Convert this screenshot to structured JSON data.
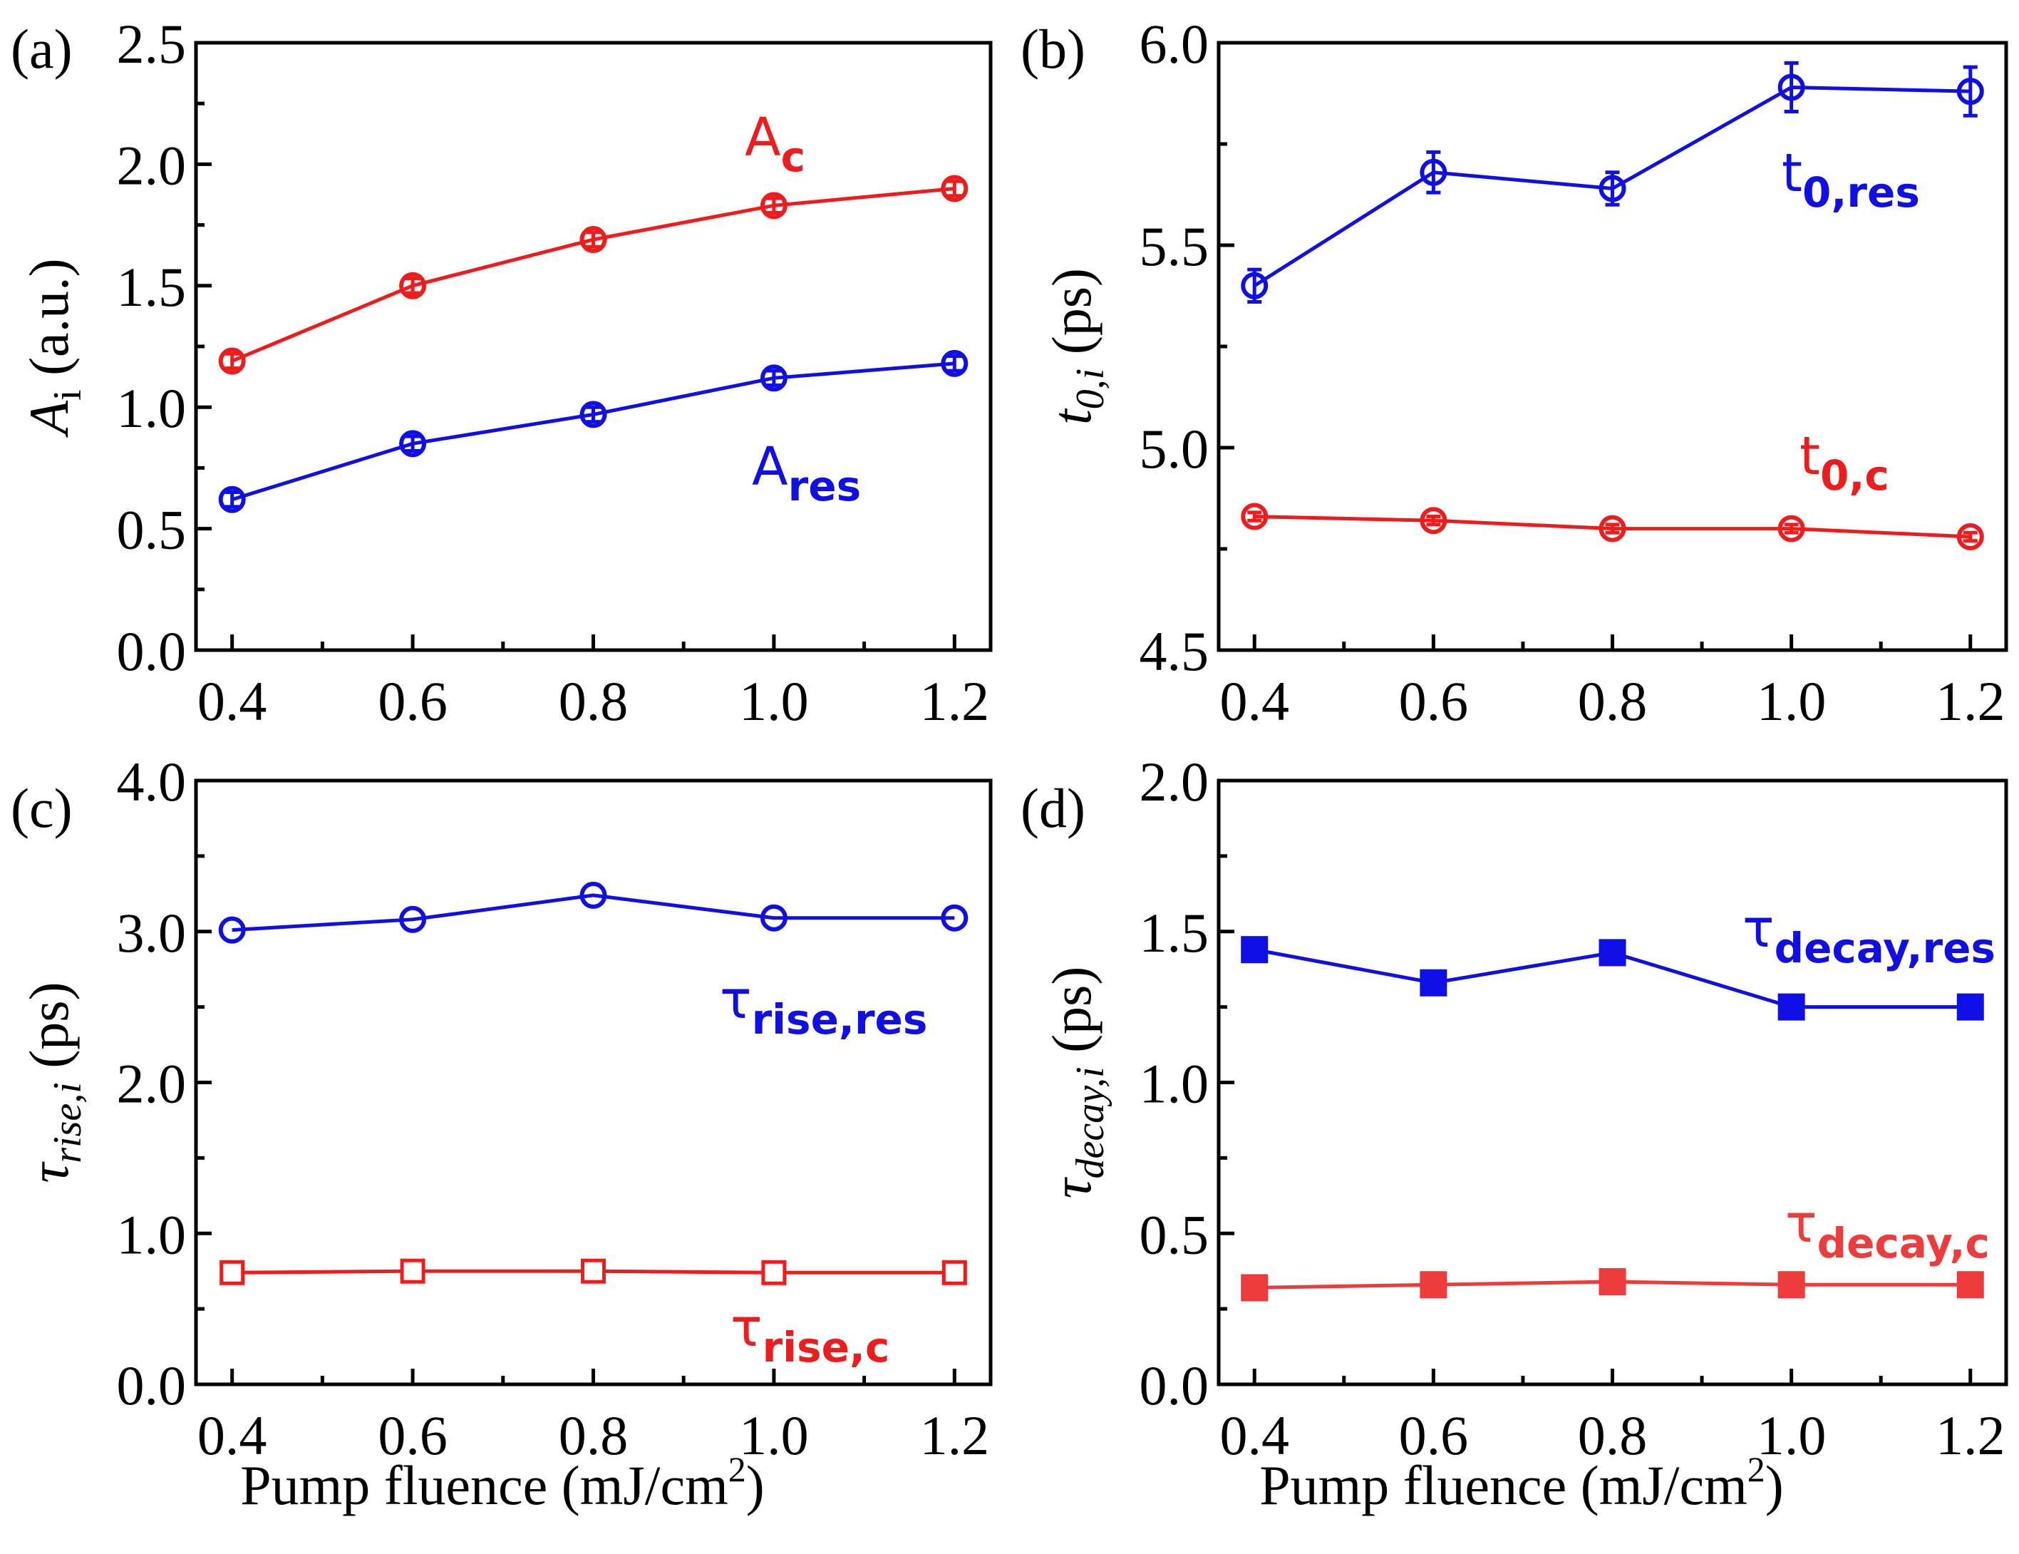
{
  "figure": {
    "xlabel": "Pump fluence (mJ/cm",
    "xlabel_sup": "2",
    "xlabel_tail": ")"
  },
  "colors": {
    "red": "#ee1c1c",
    "blue": "#1010e6",
    "red_square": "#ee3b3b"
  },
  "chart_data": [
    {
      "id": "a",
      "letter": "(a)",
      "type": "line",
      "x": [
        0.4,
        0.6,
        0.8,
        1.0,
        1.2
      ],
      "xlim": [
        0.36,
        1.24
      ],
      "ylim": [
        0.0,
        2.5
      ],
      "yticks": [
        0.0,
        0.5,
        1.0,
        1.5,
        2.0,
        2.5
      ],
      "ytick_labels": [
        "0.0",
        "0.5",
        "1.0",
        "1.5",
        "2.0",
        "2.5"
      ],
      "ylabel_main": "A",
      "ylabel_sub": "i",
      "ylabel_tail": " (a.u.)",
      "series": [
        {
          "name": "A_c",
          "label_main": "A",
          "label_sub": "c",
          "color": "red",
          "marker": "circle-open",
          "values": [
            1.19,
            1.5,
            1.69,
            1.83,
            1.9
          ],
          "errors": [
            0.03,
            0.03,
            0.03,
            0.03,
            0.03
          ]
        },
        {
          "name": "A_res",
          "label_main": "A",
          "label_sub": "res",
          "color": "blue",
          "marker": "circle-open",
          "values": [
            0.62,
            0.85,
            0.97,
            1.12,
            1.18
          ],
          "errors": [
            0.03,
            0.03,
            0.03,
            0.03,
            0.03
          ]
        }
      ]
    },
    {
      "id": "b",
      "letter": "(b)",
      "type": "line",
      "x": [
        0.4,
        0.6,
        0.8,
        1.0,
        1.2
      ],
      "xlim": [
        0.36,
        1.24
      ],
      "ylim": [
        4.5,
        6.0
      ],
      "yticks": [
        4.5,
        5.0,
        5.5,
        6.0
      ],
      "ytick_labels": [
        "4.5",
        "5.0",
        "5.5",
        "6.0"
      ],
      "ylabel_main": "t",
      "ylabel_sub": "0,i",
      "ylabel_tail": " (ps)",
      "series": [
        {
          "name": "t_0,res",
          "label_main": "t",
          "label_sub": "0,res",
          "color": "blue",
          "marker": "circle-open",
          "values": [
            5.4,
            5.68,
            5.64,
            5.89,
            5.88
          ],
          "errors": [
            0.04,
            0.05,
            0.04,
            0.06,
            0.06
          ]
        },
        {
          "name": "t_0,c",
          "label_main": "t",
          "label_sub": "0,c",
          "color": "red",
          "marker": "circle-open",
          "values": [
            4.83,
            4.82,
            4.8,
            4.8,
            4.78
          ],
          "errors": [
            0.01,
            0.01,
            0.01,
            0.01,
            0.01
          ]
        }
      ]
    },
    {
      "id": "c",
      "letter": "(c)",
      "type": "line",
      "x": [
        0.4,
        0.6,
        0.8,
        1.0,
        1.2
      ],
      "xlim": [
        0.36,
        1.24
      ],
      "ylim": [
        0.0,
        4.0
      ],
      "yticks": [
        0.0,
        1.0,
        2.0,
        3.0,
        4.0
      ],
      "ytick_labels": [
        "0.0",
        "1.0",
        "2.0",
        "3.0",
        "4.0"
      ],
      "ylabel_main": "τ",
      "ylabel_sub": "rise,i",
      "ylabel_tail": " (ps)",
      "series": [
        {
          "name": "tau_rise,res",
          "label_main": "τ",
          "label_sub": "rise,res",
          "color": "blue",
          "marker": "circle-open",
          "values": [
            3.01,
            3.08,
            3.24,
            3.09,
            3.09
          ],
          "errors": []
        },
        {
          "name": "tau_rise,c",
          "label_main": "τ",
          "label_sub": "rise,c",
          "color": "red",
          "marker": "square-open",
          "values": [
            0.74,
            0.75,
            0.75,
            0.74,
            0.74
          ],
          "errors": []
        }
      ]
    },
    {
      "id": "d",
      "letter": "(d)",
      "type": "line",
      "x": [
        0.4,
        0.6,
        0.8,
        1.0,
        1.2
      ],
      "xlim": [
        0.36,
        1.24
      ],
      "ylim": [
        0.0,
        2.0
      ],
      "yticks": [
        0.0,
        0.5,
        1.0,
        1.5,
        2.0
      ],
      "ytick_labels": [
        "0.0",
        "0.5",
        "1.0",
        "1.5",
        "2.0"
      ],
      "ylabel_main": "τ",
      "ylabel_sub": "decay,i",
      "ylabel_tail": " (ps)",
      "series": [
        {
          "name": "tau_decay,res",
          "label_main": "τ",
          "label_sub": "decay,res",
          "color": "blue",
          "marker": "square-filled",
          "values": [
            1.44,
            1.33,
            1.43,
            1.25,
            1.25
          ],
          "errors": []
        },
        {
          "name": "tau_decay,c",
          "label_main": "τ",
          "label_sub": "decay,c",
          "color": "red_square",
          "marker": "square-filled",
          "values": [
            0.32,
            0.33,
            0.34,
            0.33,
            0.33
          ],
          "errors": []
        }
      ]
    }
  ]
}
